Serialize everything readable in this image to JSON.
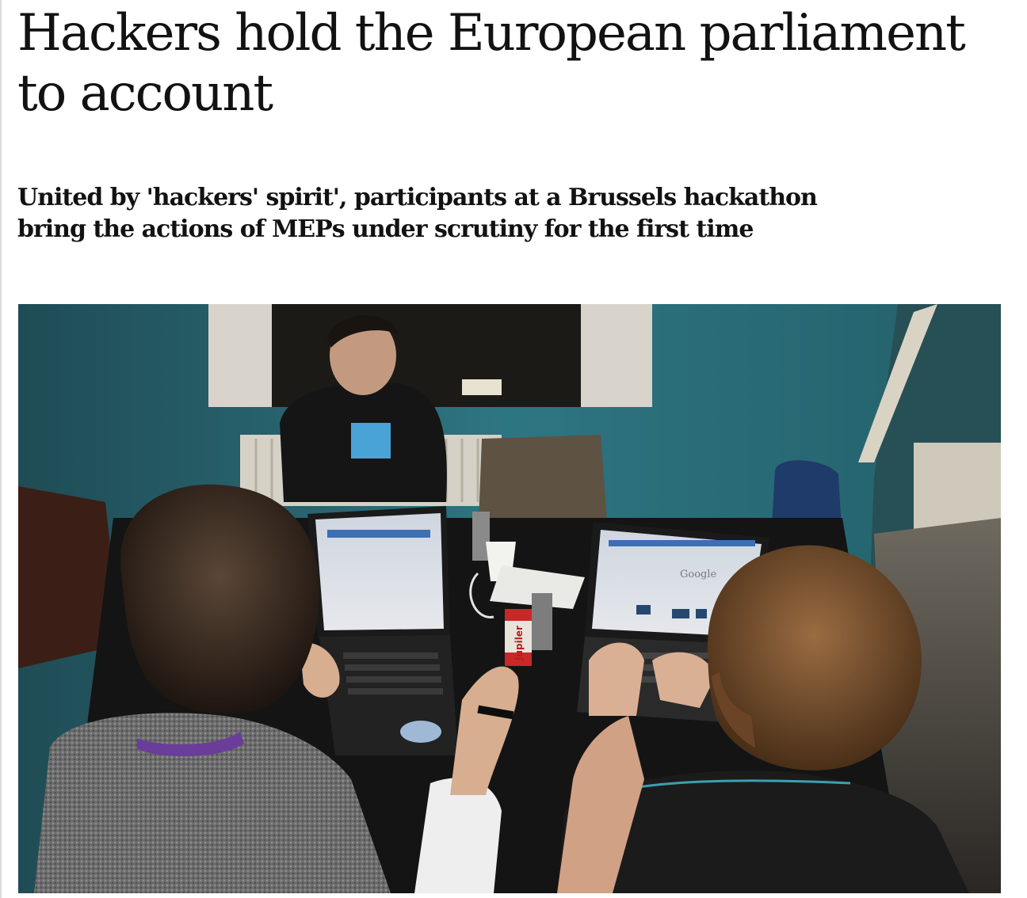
{
  "article": {
    "headline": "Hackers hold the European parliament to account",
    "standfirst": "United by 'hackers' spirit', participants at a Brussels hackathon bring the actions of MEPs under scrutiny for the first time",
    "image": {
      "screen_texts": {
        "search_logo": "Google"
      },
      "can_label": "Jupiler"
    }
  },
  "colors": {
    "text": "#121212",
    "wall": "#2f6e78",
    "rule": "#dcdcdc"
  }
}
